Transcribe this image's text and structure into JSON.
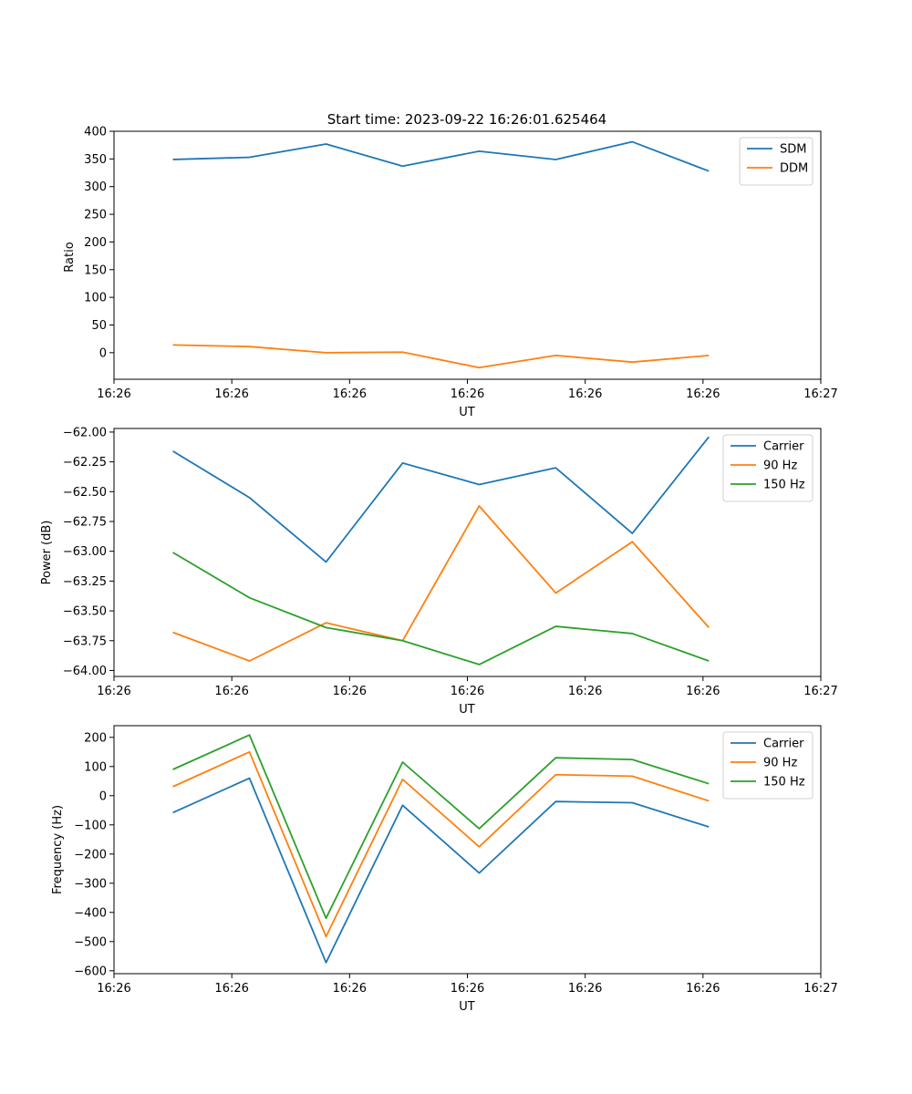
{
  "chart_data": [
    {
      "type": "line",
      "title": "Start time: 2023-09-22 16:26:01.625464",
      "xlabel": "UT",
      "ylabel": "Ratio",
      "xlim": [
        -0.5,
        5.5
      ],
      "x": [
        0,
        0.65,
        1.3,
        1.95,
        2.6,
        3.25,
        3.9,
        4.55
      ],
      "xticks": [
        0,
        1,
        2,
        3,
        4,
        5
      ],
      "xtick_labels": [
        "16:26",
        "16:26",
        "16:26",
        "16:26",
        "16:26",
        "16:26",
        "16:27"
      ],
      "xtick_positions": [
        -0.5,
        0.5,
        1.5,
        2.5,
        3.5,
        4.5,
        5.5
      ],
      "ylim": [
        -48,
        400
      ],
      "yticks": [
        0,
        50,
        100,
        150,
        200,
        250,
        300,
        350,
        400
      ],
      "ytick_labels": [
        "0",
        "50",
        "100",
        "150",
        "200",
        "250",
        "300",
        "350",
        "400"
      ],
      "legend": "top-right",
      "series": [
        {
          "name": "SDM",
          "color": "#1f77b4",
          "values": [
            349,
            353,
            377,
            337,
            364,
            349,
            381,
            328
          ]
        },
        {
          "name": "DDM",
          "color": "#ff7f0e",
          "values": [
            14,
            11,
            0,
            1,
            -27,
            -5,
            -17,
            -5
          ]
        }
      ]
    },
    {
      "type": "line",
      "title": "",
      "xlabel": "UT",
      "ylabel": "Power (dB)",
      "xlim": [
        -0.5,
        5.5
      ],
      "x": [
        0,
        0.65,
        1.3,
        1.95,
        2.6,
        3.25,
        3.9,
        4.55
      ],
      "xtick_labels": [
        "16:26",
        "16:26",
        "16:26",
        "16:26",
        "16:26",
        "16:26",
        "16:27"
      ],
      "xtick_positions": [
        -0.5,
        0.5,
        1.5,
        2.5,
        3.5,
        4.5,
        5.5
      ],
      "ylim": [
        -64.05,
        -61.97
      ],
      "yticks": [
        -64.0,
        -63.75,
        -63.5,
        -63.25,
        -63.0,
        -62.75,
        -62.5,
        -62.25,
        -62.0
      ],
      "ytick_labels": [
        "−64.00",
        "−63.75",
        "−63.50",
        "−63.25",
        "−63.00",
        "−62.75",
        "−62.50",
        "−62.25",
        "−62.00"
      ],
      "legend": "top-right",
      "series": [
        {
          "name": "Carrier",
          "color": "#1f77b4",
          "values": [
            -62.16,
            -62.55,
            -63.09,
            -62.26,
            -62.44,
            -62.3,
            -62.85,
            -62.04
          ]
        },
        {
          "name": "90 Hz",
          "color": "#ff7f0e",
          "values": [
            -63.68,
            -63.92,
            -63.6,
            -63.75,
            -62.62,
            -63.35,
            -62.92,
            -63.64
          ]
        },
        {
          "name": "150 Hz",
          "color": "#2ca02c",
          "values": [
            -63.01,
            -63.39,
            -63.64,
            -63.75,
            -63.95,
            -63.63,
            -63.69,
            -63.92
          ]
        }
      ]
    },
    {
      "type": "line",
      "title": "",
      "xlabel": "UT",
      "ylabel": "Frequency (Hz)",
      "xlim": [
        -0.5,
        5.5
      ],
      "x": [
        0,
        0.65,
        1.3,
        1.95,
        2.6,
        3.25,
        3.9,
        4.55
      ],
      "xtick_labels": [
        "16:26",
        "16:26",
        "16:26",
        "16:26",
        "16:26",
        "16:26",
        "16:27"
      ],
      "xtick_positions": [
        -0.5,
        0.5,
        1.5,
        2.5,
        3.5,
        4.5,
        5.5
      ],
      "ylim": [
        -610,
        240
      ],
      "yticks": [
        -600,
        -500,
        -400,
        -300,
        -200,
        -100,
        0,
        100,
        200
      ],
      "ytick_labels": [
        "−600",
        "−500",
        "−400",
        "−300",
        "−200",
        "−100",
        "0",
        "100",
        "200"
      ],
      "legend": "top-right",
      "series": [
        {
          "name": "Carrier",
          "color": "#1f77b4",
          "values": [
            -58,
            60,
            -572,
            -33,
            -265,
            -20,
            -24,
            -107
          ]
        },
        {
          "name": "90 Hz",
          "color": "#ff7f0e",
          "values": [
            31,
            150,
            -483,
            56,
            -175,
            72,
            67,
            -18
          ]
        },
        {
          "name": "150 Hz",
          "color": "#2ca02c",
          "values": [
            90,
            208,
            -420,
            115,
            -113,
            130,
            124,
            41
          ]
        }
      ]
    }
  ]
}
